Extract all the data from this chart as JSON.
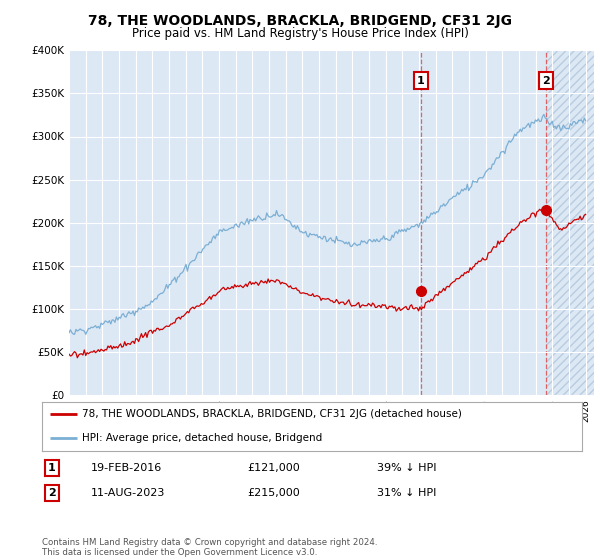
{
  "title": "78, THE WOODLANDS, BRACKLA, BRIDGEND, CF31 2JG",
  "subtitle": "Price paid vs. HM Land Registry's House Price Index (HPI)",
  "ylabel_ticks": [
    "£0",
    "£50K",
    "£100K",
    "£150K",
    "£200K",
    "£250K",
    "£300K",
    "£350K",
    "£400K"
  ],
  "ylim": [
    0,
    400000
  ],
  "xlim_start": 1995.0,
  "xlim_end": 2026.5,
  "hpi_color": "#7bafd4",
  "price_color": "#cc0000",
  "plot_bg_color": "#dde8f5",
  "grid_color": "#ffffff",
  "hatch_color": "#c8d8ec",
  "sale1_x": 2016.12,
  "sale1_y": 121000,
  "sale2_x": 2023.62,
  "sale2_y": 215000,
  "legend_line1": "78, THE WOODLANDS, BRACKLA, BRIDGEND, CF31 2JG (detached house)",
  "legend_line2": "HPI: Average price, detached house, Bridgend",
  "footer": "Contains HM Land Registry data © Crown copyright and database right 2024.\nThis data is licensed under the Open Government Licence v3.0."
}
